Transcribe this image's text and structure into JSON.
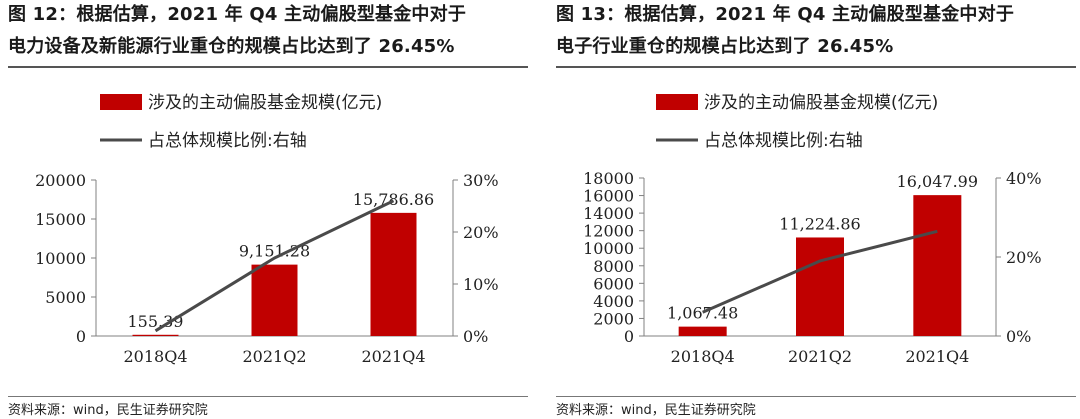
{
  "colors": {
    "bar": "#c00000",
    "line": "#4a4a4a",
    "axis": "#808080"
  },
  "panels": [
    {
      "title_line1": "图 12：根据估算，2021 年 Q4 主动偏股型基金中对于",
      "title_line2": "电力设备及新能源行业重仓的规模占比达到了 26.45%",
      "source": "资料来源：wind，民生证券研究院",
      "legend": {
        "bar": "涉及的主动偏股基金规模(亿元)",
        "line": "占总体规模比例:右轴"
      }
    },
    {
      "title_line1": "图 13：根据估算，2021 年 Q4 主动偏股型基金中对于",
      "title_line2": "电子行业重仓的规模占比达到了 26.45%",
      "source": "资料来源：wind，民生证券研究院",
      "legend": {
        "bar": "涉及的主动偏股基金规模(亿元)",
        "line": "占总体规模比例:右轴"
      }
    }
  ],
  "chart_data": [
    {
      "type": "bar",
      "categories": [
        "2018Q4",
        "2021Q2",
        "2021Q4"
      ],
      "series": [
        {
          "name": "涉及的主动偏股基金规模(亿元)",
          "type": "bar",
          "axis": "left",
          "values": [
            155.39,
            9151.28,
            15786.86
          ],
          "labels": [
            "155.39",
            "9,151.28",
            "15,786.86"
          ]
        },
        {
          "name": "占总体规模比例:右轴",
          "type": "line",
          "axis": "right",
          "values": [
            0.01,
            0.15,
            0.26
          ]
        }
      ],
      "ylim_left": [
        0,
        20000
      ],
      "yticks_left": [
        "0",
        "5000",
        "10000",
        "15000",
        "20000"
      ],
      "ylim_right": [
        0,
        0.3
      ],
      "yticks_right": [
        "0%",
        "10%",
        "20%",
        "30%"
      ],
      "legend_position": "top"
    },
    {
      "type": "bar",
      "categories": [
        "2018Q4",
        "2021Q2",
        "2021Q4"
      ],
      "series": [
        {
          "name": "涉及的主动偏股基金规模(亿元)",
          "type": "bar",
          "axis": "left",
          "values": [
            1067.48,
            11224.86,
            16047.99
          ],
          "labels": [
            "1,067.48",
            "11,224.86",
            "16,047.99"
          ]
        },
        {
          "name": "占总体规模比例:右轴",
          "type": "line",
          "axis": "right",
          "values": [
            0.06,
            0.19,
            0.265
          ]
        }
      ],
      "ylim_left": [
        0,
        18000
      ],
      "yticks_left": [
        "0",
        "2000",
        "4000",
        "6000",
        "8000",
        "10000",
        "12000",
        "14000",
        "16000",
        "18000"
      ],
      "ylim_right": [
        0,
        0.4
      ],
      "yticks_right": [
        "0%",
        "20%",
        "40%"
      ],
      "legend_position": "top"
    }
  ]
}
